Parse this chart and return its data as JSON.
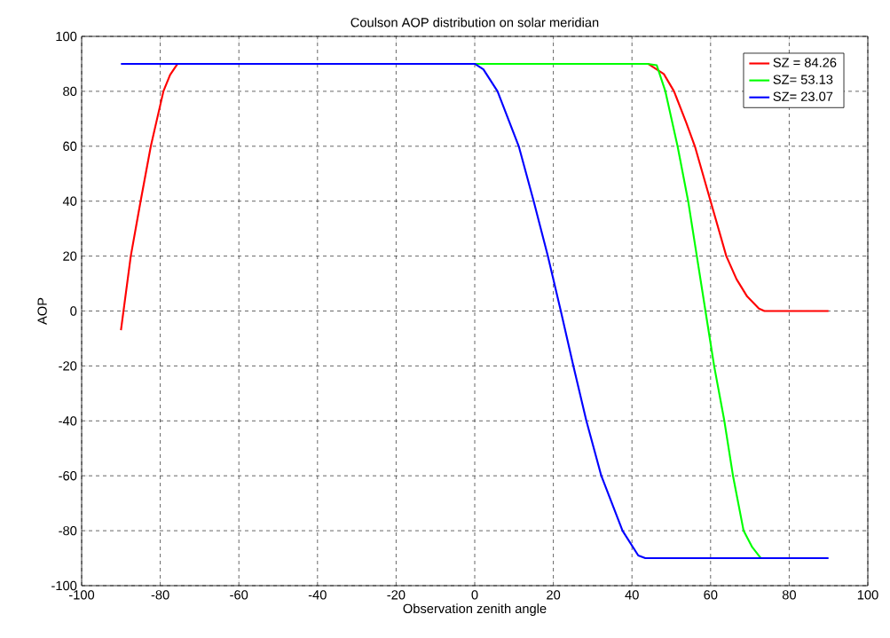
{
  "chart_data": {
    "type": "line",
    "title": "Coulson AOP distribution on solar meridian",
    "xlabel": "Observation zenith angle",
    "ylabel": "AOP",
    "xlim": [
      -100,
      100
    ],
    "ylim": [
      -100,
      100
    ],
    "xticks": [
      -100,
      -80,
      -60,
      -40,
      -20,
      0,
      20,
      40,
      60,
      80,
      100
    ],
    "yticks": [
      -100,
      -80,
      -60,
      -40,
      -20,
      0,
      20,
      40,
      60,
      80,
      100
    ],
    "grid": true,
    "legend": "top right",
    "series": [
      {
        "name": "SZ = 84.26",
        "color": "#ff0000",
        "x": [
          -90,
          -87.5,
          -85,
          -82.4,
          -80,
          -79.2,
          -77.5,
          -75.6,
          44.1,
          48.1,
          50.7,
          53.8,
          56,
          60,
          64,
          66.6,
          69.3,
          72.3,
          73.7,
          90
        ],
        "values": [
          -7,
          20,
          40,
          60,
          75,
          80,
          86,
          90,
          90,
          86.3,
          80,
          68.6,
          60,
          40,
          20,
          11.6,
          5.3,
          0.9,
          0,
          0
        ]
      },
      {
        "name": "SZ= 53.13",
        "color": "#00ff00",
        "x": [
          0,
          44,
          46.3,
          48.5,
          51.6,
          54.3,
          56.5,
          58.7,
          60.9,
          63.5,
          65.7,
          68.4,
          70.6,
          72.8
        ],
        "values": [
          90,
          90,
          89.5,
          80,
          60,
          40,
          20,
          0,
          -20,
          -40,
          -60,
          -80,
          -86,
          -90
        ]
      },
      {
        "name": "SZ= 23.07",
        "color": "#0000ff",
        "x": [
          -90,
          0,
          2.2,
          5.8,
          11.2,
          15,
          18.6,
          21.9,
          25.1,
          28.4,
          32.2,
          37.6,
          41.6,
          43.4,
          90
        ],
        "values": [
          90,
          90,
          88,
          80,
          60,
          40,
          20,
          0,
          -20,
          -40,
          -60,
          -80,
          -89,
          -90,
          -90
        ]
      }
    ]
  }
}
